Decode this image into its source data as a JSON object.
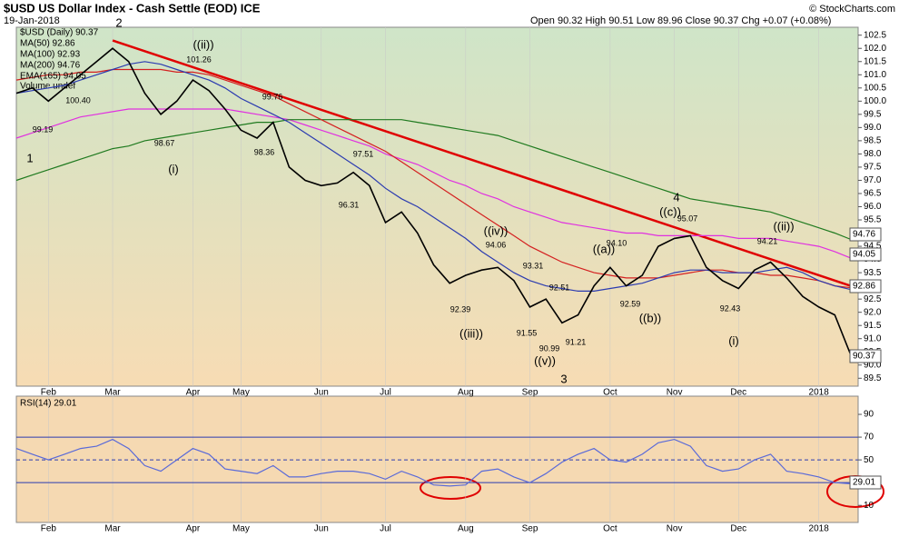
{
  "header": {
    "title": "$USD US Dollar Index - Cash Settle (EOD) ICE",
    "date": "19-Jan-2018",
    "credit": "© StockCharts.com",
    "quote": "Open 90.32  High 90.51  Low 89.96  Close 90.37  Chg +0.07 (+0.08%)",
    "volume": "Volume undef"
  },
  "chart_data": [
    {
      "type": "line",
      "ylim": [
        89.2,
        102.8
      ],
      "yticks": [
        89.5,
        {
          "value": 90,
          "label": "90.0"
        },
        90.5,
        {
          "value": 91,
          "label": "91.0"
        },
        91.5,
        {
          "value": 92,
          "label": "92.0"
        },
        92.5,
        {
          "value": 93,
          "label": "93.0"
        },
        93.5,
        {
          "value": 94,
          "label": "94.0"
        },
        94.5,
        {
          "value": 95,
          "label": "95.0"
        },
        95.5,
        {
          "value": 96,
          "label": "96.0"
        },
        96.5,
        {
          "value": 97,
          "label": "97.0"
        },
        97.5,
        {
          "value": 98,
          "label": "98.0"
        },
        98.5,
        {
          "value": 99,
          "label": "99.0"
        },
        99.5,
        {
          "value": 100,
          "label": "100.0"
        },
        100.5,
        {
          "value": 101,
          "label": "101.0"
        },
        101.5,
        {
          "value": 102,
          "label": "102.0"
        },
        102.5
      ],
      "categories": [
        null,
        null,
        "Feb",
        null,
        null,
        null,
        "Mar",
        null,
        null,
        null,
        null,
        "Apr",
        null,
        null,
        "May",
        null,
        null,
        null,
        null,
        "Jun",
        null,
        null,
        null,
        "Jul",
        null,
        null,
        null,
        null,
        "Aug",
        null,
        null,
        null,
        "Sep",
        null,
        null,
        null,
        null,
        "Oct",
        null,
        null,
        null,
        "Nov",
        null,
        null,
        null,
        "Dec",
        null,
        null,
        null,
        null,
        "2018",
        null,
        null
      ],
      "series": [
        {
          "name": "$USD (Daily) 90.37",
          "color": "#000000",
          "values": [
            100.3,
            100.5,
            100.0,
            100.5,
            101.0,
            101.5,
            102.0,
            101.5,
            100.3,
            99.5,
            100.0,
            100.8,
            100.4,
            99.7,
            98.9,
            98.6,
            99.2,
            97.5,
            97.0,
            96.8,
            96.9,
            97.3,
            96.8,
            95.4,
            95.8,
            95.0,
            93.8,
            93.1,
            93.4,
            93.6,
            93.7,
            93.2,
            92.2,
            92.5,
            91.6,
            91.9,
            93.0,
            93.7,
            93.0,
            93.4,
            94.5,
            94.8,
            94.9,
            93.7,
            93.2,
            92.9,
            93.6,
            93.9,
            93.3,
            92.6,
            92.2,
            91.9,
            90.37
          ]
        },
        {
          "name": "MA(50) 92.86",
          "color": "#2b3bb0",
          "values": [
            100.3,
            100.4,
            100.5,
            100.6,
            100.8,
            101.0,
            101.2,
            101.4,
            101.5,
            101.4,
            101.2,
            101.0,
            100.8,
            100.5,
            100.1,
            99.8,
            99.5,
            99.2,
            98.8,
            98.4,
            98.0,
            97.6,
            97.2,
            96.7,
            96.3,
            96.0,
            95.6,
            95.2,
            94.8,
            94.3,
            93.9,
            93.5,
            93.2,
            93.0,
            92.9,
            92.8,
            92.8,
            92.9,
            93.0,
            93.1,
            93.3,
            93.5,
            93.6,
            93.6,
            93.5,
            93.5,
            93.5,
            93.6,
            93.7,
            93.5,
            93.2,
            93.0,
            92.86
          ]
        },
        {
          "name": "MA(100) 92.93",
          "color": "#d42020",
          "values": [
            100.8,
            100.9,
            101.0,
            101.0,
            101.1,
            101.1,
            101.2,
            101.2,
            101.2,
            101.2,
            101.1,
            101.1,
            101.0,
            100.8,
            100.6,
            100.4,
            100.2,
            99.9,
            99.6,
            99.3,
            99.0,
            98.7,
            98.4,
            98.1,
            97.7,
            97.3,
            96.9,
            96.5,
            96.1,
            95.7,
            95.3,
            94.9,
            94.5,
            94.2,
            93.9,
            93.7,
            93.5,
            93.4,
            93.3,
            93.3,
            93.3,
            93.4,
            93.5,
            93.6,
            93.6,
            93.5,
            93.5,
            93.4,
            93.4,
            93.3,
            93.2,
            93.0,
            92.93
          ]
        },
        {
          "name": "MA(200) 94.76",
          "color": "#1f7a1f",
          "values": [
            97.0,
            97.2,
            97.4,
            97.6,
            97.8,
            98.0,
            98.2,
            98.3,
            98.5,
            98.6,
            98.7,
            98.8,
            98.9,
            99.0,
            99.1,
            99.2,
            99.2,
            99.3,
            99.3,
            99.3,
            99.3,
            99.3,
            99.3,
            99.3,
            99.3,
            99.2,
            99.1,
            99.0,
            98.9,
            98.8,
            98.7,
            98.5,
            98.3,
            98.1,
            97.9,
            97.7,
            97.5,
            97.3,
            97.1,
            96.9,
            96.7,
            96.5,
            96.3,
            96.2,
            96.1,
            96.0,
            95.9,
            95.8,
            95.6,
            95.4,
            95.2,
            95.0,
            94.76
          ]
        },
        {
          "name": "EMA(165) 94.05",
          "color": "#e030e0",
          "values": [
            98.6,
            98.8,
            99.0,
            99.2,
            99.4,
            99.5,
            99.6,
            99.7,
            99.7,
            99.7,
            99.7,
            99.7,
            99.7,
            99.7,
            99.6,
            99.5,
            99.4,
            99.3,
            99.1,
            98.9,
            98.7,
            98.5,
            98.3,
            98.0,
            97.8,
            97.6,
            97.3,
            97.0,
            96.8,
            96.5,
            96.3,
            96.0,
            95.8,
            95.6,
            95.4,
            95.3,
            95.2,
            95.1,
            95.0,
            95.0,
            94.9,
            94.9,
            94.9,
            94.9,
            94.9,
            94.8,
            94.8,
            94.8,
            94.7,
            94.6,
            94.5,
            94.3,
            94.05
          ]
        }
      ],
      "trendline": {
        "color": "#e00000",
        "values": [
          null,
          null,
          null,
          null,
          null,
          null,
          102.3,
          null,
          null,
          null,
          null,
          null,
          null,
          null,
          null,
          null,
          null,
          null,
          null,
          null,
          null,
          null,
          null,
          null,
          null,
          null,
          null,
          null,
          null,
          null,
          null,
          null,
          null,
          null,
          null,
          null,
          null,
          null,
          null,
          null,
          null,
          null,
          null,
          null,
          null,
          null,
          null,
          null,
          null,
          null,
          null,
          null,
          93.0
        ]
      },
      "last_value_labels": [
        "94.76",
        "94.05",
        "92.86",
        "90.37"
      ],
      "wave_label_color": "#e00000",
      "wave_labels": [
        "2",
        "1",
        "(i)",
        "((ii))",
        "((iii))",
        "((iv))",
        "((v))",
        "3",
        "((a))",
        "((b))",
        "((c))",
        "4",
        "(i)",
        "((ii))"
      ],
      "price_labels": [
        "101.26",
        "100.40",
        "99.19",
        "98.67",
        "99.76",
        "98.36",
        "97.51",
        "96.31",
        "94.06",
        "93.31",
        "92.51",
        "92.39",
        "91.55",
        "90.99",
        "91.21",
        "94.10",
        "92.59",
        "95.07",
        "94.21",
        "92.43"
      ]
    },
    {
      "type": "line",
      "title": "RSI(14) 29.01",
      "ylim": [
        -5,
        106
      ],
      "yticks": [
        10,
        50,
        70,
        90
      ],
      "levels": [
        30,
        50,
        70
      ],
      "categories": [
        null,
        null,
        "Feb",
        null,
        null,
        null,
        "Mar",
        null,
        null,
        null,
        null,
        "Apr",
        null,
        null,
        "May",
        null,
        null,
        null,
        null,
        "Jun",
        null,
        null,
        null,
        "Jul",
        null,
        null,
        null,
        null,
        "Aug",
        null,
        null,
        null,
        "Sep",
        null,
        null,
        null,
        null,
        "Oct",
        null,
        null,
        null,
        "Nov",
        null,
        null,
        null,
        "Dec",
        null,
        null,
        null,
        null,
        "2018",
        null,
        null
      ],
      "color": "#5a6ad8",
      "values": [
        60,
        55,
        50,
        55,
        60,
        62,
        68,
        60,
        45,
        40,
        50,
        60,
        55,
        42,
        40,
        38,
        45,
        35,
        35,
        38,
        40,
        40,
        38,
        33,
        40,
        35,
        28,
        27,
        28,
        40,
        42,
        35,
        30,
        38,
        48,
        55,
        60,
        50,
        48,
        55,
        65,
        68,
        62,
        45,
        40,
        42,
        50,
        55,
        40,
        38,
        35,
        30,
        29.01
      ],
      "last_value_label": "29.01"
    }
  ]
}
